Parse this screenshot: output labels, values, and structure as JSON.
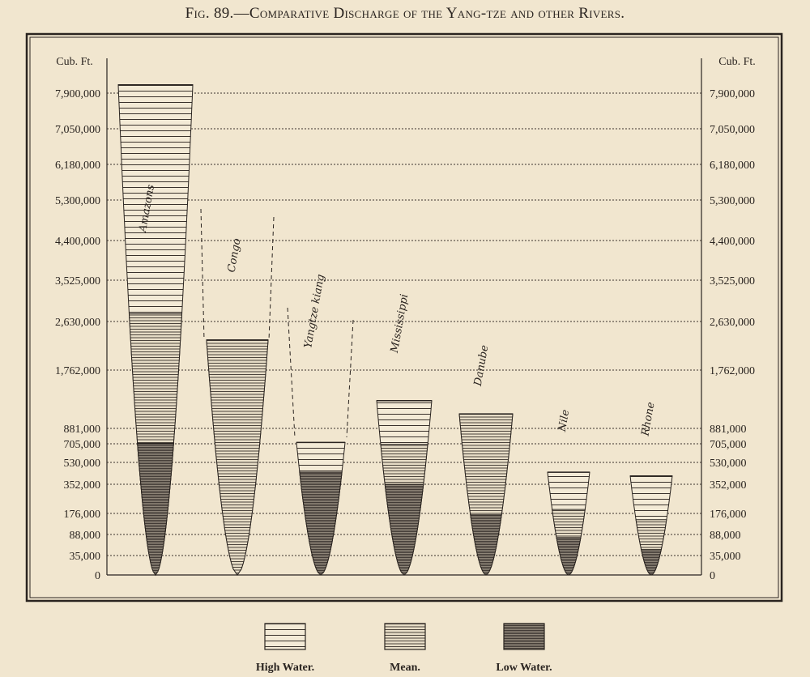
{
  "figure_title": "Fig. 89.—Comparative Discharge of the Yang-tze and other Rivers.",
  "chart_data": {
    "type": "bar",
    "unit_label": "Cub. Ft.",
    "y_ticks": [
      0,
      35000,
      88000,
      176000,
      352000,
      530000,
      705000,
      881000,
      1762000,
      2630000,
      3525000,
      4400000,
      5300000,
      6180000,
      7050000,
      7900000
    ],
    "y_tick_labels": [
      "0",
      "35,000",
      "88,000",
      "176,000",
      "352,000",
      "530,000",
      "705,000",
      "881,000",
      "1,762,000",
      "2,630,000",
      "3,525,000",
      "4,400,000",
      "5,300,000",
      "6,180,000",
      "7,050,000",
      "7,900,000"
    ],
    "categories": [
      "Amazons",
      "Congo",
      "Yangtze kiang",
      "Mississippi",
      "Danube",
      "Nile",
      "Rhone"
    ],
    "series": [
      {
        "name": "High Water.",
        "values": [
          8100000,
          2300000,
          720000,
          1300000,
          1100000,
          450000,
          420000
        ]
      },
      {
        "name": "Mean.",
        "values": [
          2800000,
          2300000,
          450000,
          700000,
          1100000,
          200000,
          150000
        ]
      },
      {
        "name": "Low Water.",
        "values": [
          710000,
          0,
          450000,
          352000,
          170000,
          80000,
          50000
        ]
      }
    ],
    "legend_position": "bottom-center"
  }
}
